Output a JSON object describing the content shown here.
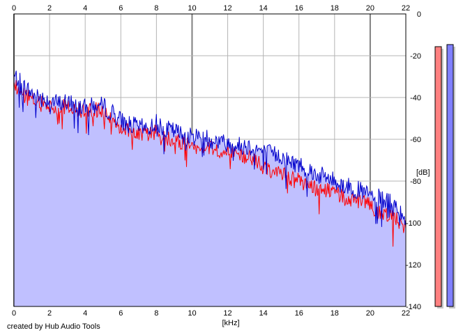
{
  "chart_data": {
    "type": "area",
    "title": "",
    "xlabel": "[kHz]",
    "ylabel": "[dB]",
    "xlim": [
      0,
      22
    ],
    "ylim": [
      -140,
      0
    ],
    "x_ticks": [
      0,
      2,
      4,
      6,
      8,
      10,
      12,
      14,
      16,
      18,
      20,
      22
    ],
    "y_ticks": [
      0,
      -20,
      -40,
      -60,
      -80,
      -100,
      -120,
      -140
    ],
    "y_tick_labels": [
      "0",
      "-20",
      "-40",
      "-60",
      "-80",
      "-100",
      "-120",
      "-140"
    ],
    "grid": true,
    "series": [
      {
        "color": "#0000cc",
        "fill": "#c0c0ff",
        "x": [
          0,
          0.25,
          0.5,
          0.75,
          1,
          1.5,
          2,
          2.5,
          3,
          3.5,
          4,
          4.5,
          5,
          5.5,
          6,
          6.5,
          7,
          7.5,
          8,
          8.5,
          9,
          9.5,
          10,
          10.5,
          11,
          11.5,
          12,
          12.5,
          13,
          13.5,
          14,
          14.5,
          15,
          15.5,
          16,
          16.5,
          17,
          17.5,
          18,
          18.5,
          19,
          19.5,
          20,
          20.5,
          21,
          21.5,
          22
        ],
        "y": [
          -30,
          -31,
          -34,
          -36,
          -38,
          -40,
          -41,
          -43,
          -42,
          -44,
          -45,
          -44,
          -44,
          -47,
          -51,
          -53,
          -54,
          -55,
          -52,
          -55,
          -56,
          -58,
          -59,
          -58,
          -60,
          -61,
          -62,
          -63,
          -63,
          -64,
          -66,
          -67,
          -68,
          -71,
          -72,
          -74,
          -77,
          -78,
          -80,
          -82,
          -83,
          -85,
          -87,
          -88,
          -90,
          -92,
          -97
        ]
      },
      {
        "color": "#ff0000",
        "x": [
          0,
          0.25,
          0.5,
          0.75,
          1,
          1.5,
          2,
          2.5,
          3,
          3.5,
          4,
          4.5,
          5,
          5.5,
          6,
          6.5,
          7,
          7.5,
          8,
          8.5,
          9,
          9.5,
          10,
          10.5,
          11,
          11.5,
          12,
          12.5,
          13,
          13.5,
          14,
          14.5,
          15,
          15.5,
          16,
          16.5,
          17,
          17.5,
          18,
          18.5,
          19,
          19.5,
          20,
          20.5,
          21,
          21.5,
          22
        ],
        "y": [
          -34,
          -36,
          -38,
          -40,
          -41,
          -43,
          -44,
          -45,
          -44,
          -46,
          -47,
          -46,
          -47,
          -50,
          -54,
          -56,
          -57,
          -58,
          -56,
          -59,
          -60,
          -62,
          -64,
          -62,
          -64,
          -65,
          -66,
          -67,
          -68,
          -70,
          -73,
          -75,
          -76,
          -79,
          -80,
          -82,
          -84,
          -84,
          -86,
          -88,
          -89,
          -90,
          -92,
          -94,
          -96,
          -98,
          -103
        ]
      }
    ],
    "level_meters": [
      {
        "color": "#ff8080",
        "value": -10
      },
      {
        "color": "#8080ff",
        "value": -9
      }
    ],
    "credit": "created by Hub Audio Tools"
  }
}
